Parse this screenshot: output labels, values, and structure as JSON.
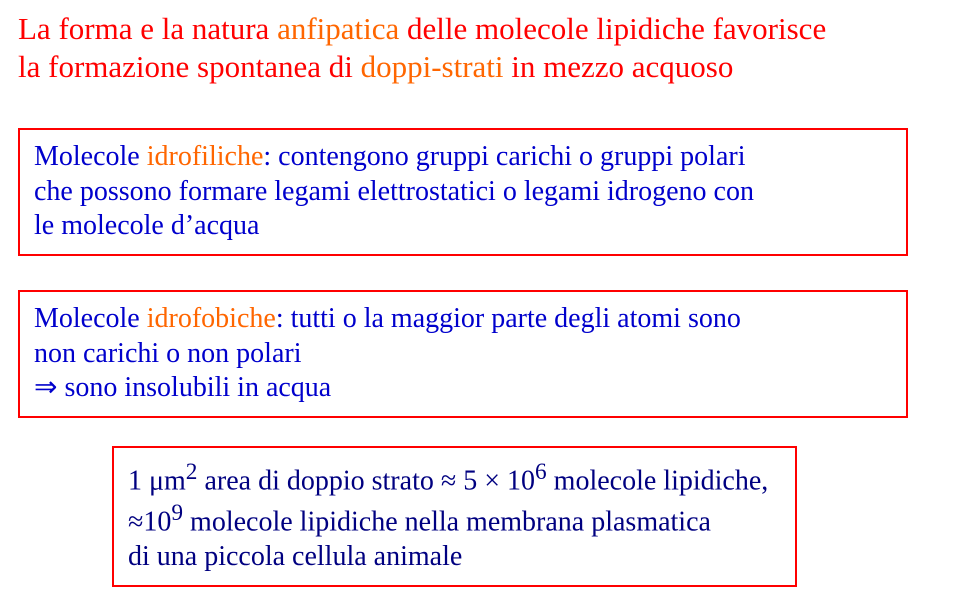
{
  "title": {
    "line1_a": "La forma e la natura ",
    "line1_b": "anfipatica",
    "line1_c": " delle molecole lipidiche favorisce",
    "line2_a": "la formazione spontanea di ",
    "line2_b": "doppi-strati",
    "line2_c": " in mezzo acquoso",
    "color_main": "#ff0000",
    "color_hl": "#ff6600"
  },
  "hydrophilic_box": {
    "lead_a": "Molecole ",
    "lead_b": "idrofiliche",
    "lead_c": ": contengono gruppi carichi o gruppi polari",
    "line2": "che possono formare legami elettrostatici o legami idrogeno con",
    "line3": "le molecole d’acqua",
    "color_text": "#0000cc",
    "color_hl": "#ff6600"
  },
  "hydrophobic_box": {
    "lead_a": "Molecole ",
    "lead_b": "idrofobiche",
    "lead_c": ": tutti o la maggior parte degli atomi sono",
    "line2": "non carichi o non polari",
    "arrow": "⇒",
    "line3_rest": " sono insolubili in acqua",
    "color_text": "#0000cc",
    "color_hl": "#ff6600"
  },
  "stats_box": {
    "l1_a": "1 μm",
    "l1_sup": "2",
    "l1_b": " area di doppio strato ≈ 5 × 10",
    "l1_sup2": "6",
    "l1_c": " molecole lipidiche,",
    "l2_a": "≈10",
    "l2_sup": "9",
    "l2_b": " molecole lipidiche nella membrana plasmatica",
    "l3": "di una piccola cellula animale",
    "color_text": "#000080"
  }
}
